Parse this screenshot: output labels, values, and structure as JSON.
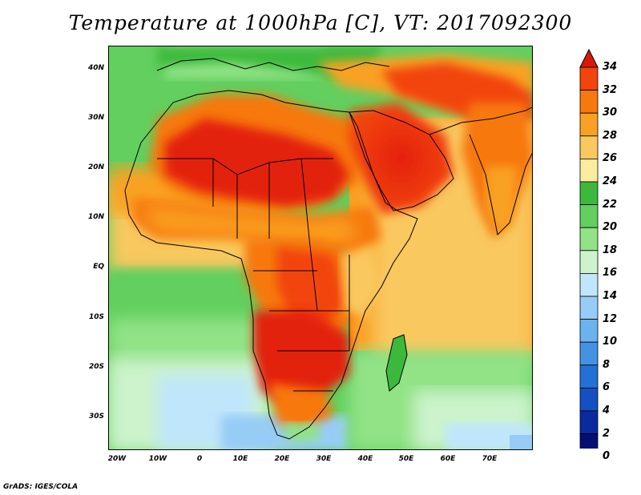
{
  "title": "Temperature at 1000hPa [C], VT: 2017092300",
  "credit": "GrADS: IGES/COLA",
  "map": {
    "lat_labels": [
      "40N",
      "30N",
      "20N",
      "10N",
      "EQ",
      "10S",
      "20S",
      "30S"
    ],
    "lon_labels": [
      "20W",
      "10W",
      "0",
      "10E",
      "20E",
      "30E",
      "40E",
      "50E",
      "60E",
      "70E"
    ]
  },
  "colorbar": {
    "labels": [
      "34",
      "32",
      "30",
      "28",
      "26",
      "24",
      "22",
      "20",
      "18",
      "16",
      "14",
      "12",
      "10",
      "8",
      "6",
      "4",
      "2",
      "0"
    ],
    "colors": [
      "#e3200b",
      "#f2440b",
      "#f7780d",
      "#f9a124",
      "#f9c85e",
      "#fbec9f",
      "#3cb93c",
      "#62cf5f",
      "#91e386",
      "#ccf3cc",
      "#bfe6fb",
      "#96ccf5",
      "#6bb2ef",
      "#4592e5",
      "#2370d6",
      "#1450c1",
      "#0a2aa0",
      "#040f73"
    ],
    "top_arrow_color": "#d91807",
    "bottom_arrow_color": "#d6d0f7"
  }
}
